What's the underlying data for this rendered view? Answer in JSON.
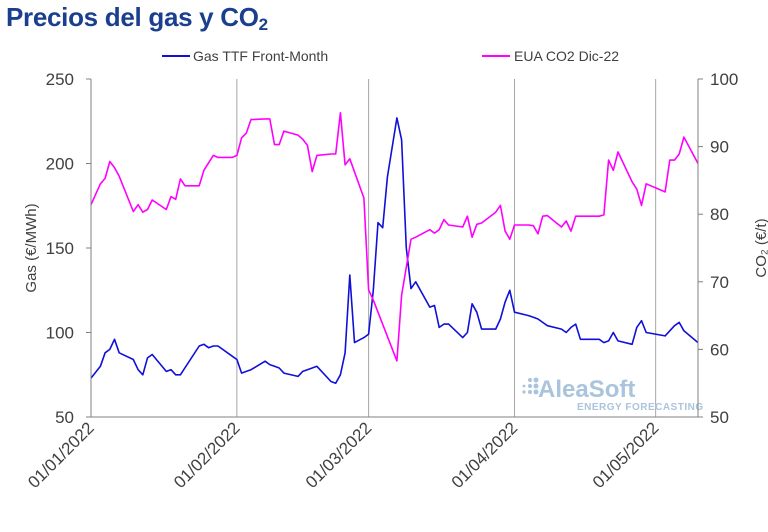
{
  "title": {
    "main": "Precios del gas y CO",
    "sub": "2"
  },
  "logo": {
    "name": "AleaSoft",
    "tagline": "ENERGY FORECASTING"
  },
  "chart_data": {
    "type": "line",
    "xlabel": "",
    "ylabel": "Gas (€/MWh)",
    "ylabel2": "CO₂ (€/t)",
    "ylim": [
      50,
      250
    ],
    "ylim2": [
      50,
      100
    ],
    "yticks": [
      "250",
      "200",
      "150",
      "100",
      "50"
    ],
    "yticks2": [
      "100",
      "90",
      "80",
      "70",
      "60",
      "50"
    ],
    "xticks": [
      "01/01/2022",
      "01/02/2022",
      "01/03/2022",
      "01/04/2022",
      "01/05/2022"
    ],
    "grid": "vertical",
    "legend": "top",
    "series": [
      {
        "name": "Gas TTF Front-Month",
        "color": "#1010d8",
        "axis": "left",
        "points": [
          [
            "2022-01-01",
            73
          ],
          [
            "2022-01-03",
            80
          ],
          [
            "2022-01-04",
            88
          ],
          [
            "2022-01-05",
            90
          ],
          [
            "2022-01-06",
            96
          ],
          [
            "2022-01-07",
            88
          ],
          [
            "2022-01-10",
            84
          ],
          [
            "2022-01-11",
            78
          ],
          [
            "2022-01-12",
            75
          ],
          [
            "2022-01-13",
            85
          ],
          [
            "2022-01-14",
            87
          ],
          [
            "2022-01-17",
            77
          ],
          [
            "2022-01-18",
            78
          ],
          [
            "2022-01-19",
            75
          ],
          [
            "2022-01-20",
            75
          ],
          [
            "2022-01-24",
            92
          ],
          [
            "2022-01-25",
            93
          ],
          [
            "2022-01-26",
            91
          ],
          [
            "2022-01-27",
            92
          ],
          [
            "2022-01-28",
            92
          ],
          [
            "2022-01-31",
            86
          ],
          [
            "2022-02-01",
            84
          ],
          [
            "2022-02-02",
            76
          ],
          [
            "2022-02-03",
            77
          ],
          [
            "2022-02-04",
            78
          ],
          [
            "2022-02-07",
            83
          ],
          [
            "2022-02-08",
            81
          ],
          [
            "2022-02-09",
            80
          ],
          [
            "2022-02-10",
            79
          ],
          [
            "2022-02-11",
            76
          ],
          [
            "2022-02-14",
            74
          ],
          [
            "2022-02-15",
            77
          ],
          [
            "2022-02-16",
            78
          ],
          [
            "2022-02-17",
            79
          ],
          [
            "2022-02-18",
            80
          ],
          [
            "2022-02-21",
            71
          ],
          [
            "2022-02-22",
            70
          ],
          [
            "2022-02-23",
            75
          ],
          [
            "2022-02-24",
            88
          ],
          [
            "2022-02-25",
            134
          ],
          [
            "2022-02-26",
            94
          ],
          [
            "2022-02-28",
            97
          ],
          [
            "2022-03-01",
            99
          ],
          [
            "2022-03-02",
            125
          ],
          [
            "2022-03-03",
            165
          ],
          [
            "2022-03-04",
            162
          ],
          [
            "2022-03-05",
            192
          ],
          [
            "2022-03-07",
            227
          ],
          [
            "2022-03-08",
            214
          ],
          [
            "2022-03-09",
            150
          ],
          [
            "2022-03-10",
            126
          ],
          [
            "2022-03-11",
            130
          ],
          [
            "2022-03-14",
            115
          ],
          [
            "2022-03-15",
            116
          ],
          [
            "2022-03-16",
            103
          ],
          [
            "2022-03-17",
            105
          ],
          [
            "2022-03-18",
            105
          ],
          [
            "2022-03-21",
            97
          ],
          [
            "2022-03-22",
            100
          ],
          [
            "2022-03-23",
            117
          ],
          [
            "2022-03-24",
            112
          ],
          [
            "2022-03-25",
            102
          ],
          [
            "2022-03-28",
            102
          ],
          [
            "2022-03-29",
            108
          ],
          [
            "2022-03-30",
            118
          ],
          [
            "2022-03-31",
            125
          ],
          [
            "2022-04-01",
            112
          ],
          [
            "2022-04-04",
            110
          ],
          [
            "2022-04-05",
            109
          ],
          [
            "2022-04-06",
            108
          ],
          [
            "2022-04-07",
            106
          ],
          [
            "2022-04-08",
            104
          ],
          [
            "2022-04-11",
            102
          ],
          [
            "2022-04-12",
            100
          ],
          [
            "2022-04-13",
            103
          ],
          [
            "2022-04-14",
            105
          ],
          [
            "2022-04-15",
            96
          ],
          [
            "2022-04-18",
            96
          ],
          [
            "2022-04-19",
            96
          ],
          [
            "2022-04-20",
            94
          ],
          [
            "2022-04-21",
            95
          ],
          [
            "2022-04-22",
            100
          ],
          [
            "2022-04-23",
            95
          ],
          [
            "2022-04-26",
            93
          ],
          [
            "2022-04-27",
            103
          ],
          [
            "2022-04-28",
            107
          ],
          [
            "2022-04-29",
            100
          ],
          [
            "2022-05-03",
            98
          ],
          [
            "2022-05-04",
            101
          ],
          [
            "2022-05-05",
            104
          ],
          [
            "2022-05-06",
            106
          ],
          [
            "2022-05-07",
            101
          ],
          [
            "2022-05-10",
            94
          ]
        ]
      },
      {
        "name": "EUA CO2 Dic-22",
        "color": "#ff00ff",
        "axis": "right",
        "points": [
          [
            "2022-01-01",
            81.4
          ],
          [
            "2022-01-03",
            84.5
          ],
          [
            "2022-01-04",
            85.3
          ],
          [
            "2022-01-05",
            87.8
          ],
          [
            "2022-01-06",
            86.9
          ],
          [
            "2022-01-07",
            85.6
          ],
          [
            "2022-01-10",
            80.4
          ],
          [
            "2022-01-11",
            81.4
          ],
          [
            "2022-01-12",
            80.3
          ],
          [
            "2022-01-13",
            80.7
          ],
          [
            "2022-01-14",
            82.1
          ],
          [
            "2022-01-17",
            80.7
          ],
          [
            "2022-01-18",
            82.6
          ],
          [
            "2022-01-19",
            82.2
          ],
          [
            "2022-01-20",
            85.2
          ],
          [
            "2022-01-21",
            84.2
          ],
          [
            "2022-01-24",
            84.2
          ],
          [
            "2022-01-25",
            86.5
          ],
          [
            "2022-01-26",
            87.6
          ],
          [
            "2022-01-27",
            88.7
          ],
          [
            "2022-01-28",
            88.4
          ],
          [
            "2022-01-31",
            88.4
          ],
          [
            "2022-02-01",
            88.7
          ],
          [
            "2022-02-02",
            91.3
          ],
          [
            "2022-02-03",
            92.0
          ],
          [
            "2022-02-04",
            94.0
          ],
          [
            "2022-02-07",
            94.1
          ],
          [
            "2022-02-08",
            94.1
          ],
          [
            "2022-02-09",
            90.3
          ],
          [
            "2022-02-10",
            90.3
          ],
          [
            "2022-02-11",
            92.3
          ],
          [
            "2022-02-14",
            91.7
          ],
          [
            "2022-02-15",
            91.1
          ],
          [
            "2022-02-16",
            90.2
          ],
          [
            "2022-02-17",
            86.3
          ],
          [
            "2022-02-18",
            88.7
          ],
          [
            "2022-02-21",
            88.9
          ],
          [
            "2022-02-22",
            88.9
          ],
          [
            "2022-02-23",
            95.0
          ],
          [
            "2022-02-24",
            87.3
          ],
          [
            "2022-02-25",
            88.2
          ],
          [
            "2022-02-28",
            82.4
          ],
          [
            "2022-03-01",
            68.8
          ],
          [
            "2022-03-02",
            67.3
          ],
          [
            "2022-03-07",
            58.3
          ],
          [
            "2022-03-08",
            68.0
          ],
          [
            "2022-03-10",
            76.3
          ],
          [
            "2022-03-11",
            76.6
          ],
          [
            "2022-03-14",
            77.7
          ],
          [
            "2022-03-15",
            77.2
          ],
          [
            "2022-03-16",
            77.7
          ],
          [
            "2022-03-17",
            79.2
          ],
          [
            "2022-03-18",
            78.4
          ],
          [
            "2022-03-21",
            78.1
          ],
          [
            "2022-03-22",
            79.7
          ],
          [
            "2022-03-23",
            76.6
          ],
          [
            "2022-03-24",
            78.5
          ],
          [
            "2022-03-25",
            78.7
          ],
          [
            "2022-03-28",
            80.3
          ],
          [
            "2022-03-29",
            81.3
          ],
          [
            "2022-03-30",
            77.5
          ],
          [
            "2022-03-31",
            76.3
          ],
          [
            "2022-04-01",
            78.4
          ],
          [
            "2022-04-04",
            78.4
          ],
          [
            "2022-04-05",
            78.3
          ],
          [
            "2022-04-06",
            77.1
          ],
          [
            "2022-04-07",
            79.7
          ],
          [
            "2022-04-08",
            79.8
          ],
          [
            "2022-04-11",
            78.1
          ],
          [
            "2022-04-12",
            79.0
          ],
          [
            "2022-04-13",
            77.5
          ],
          [
            "2022-04-14",
            79.7
          ],
          [
            "2022-04-15",
            79.7
          ],
          [
            "2022-04-19",
            79.7
          ],
          [
            "2022-04-20",
            79.9
          ],
          [
            "2022-04-21",
            88.0
          ],
          [
            "2022-04-22",
            86.5
          ],
          [
            "2022-04-23",
            89.2
          ],
          [
            "2022-04-26",
            84.8
          ],
          [
            "2022-04-27",
            83.7
          ],
          [
            "2022-04-28",
            81.3
          ],
          [
            "2022-04-29",
            84.5
          ],
          [
            "2022-05-03",
            83.3
          ],
          [
            "2022-05-04",
            88.0
          ],
          [
            "2022-05-05",
            88.0
          ],
          [
            "2022-05-06",
            88.9
          ],
          [
            "2022-05-07",
            91.4
          ],
          [
            "2022-05-10",
            87.5
          ]
        ]
      }
    ]
  }
}
